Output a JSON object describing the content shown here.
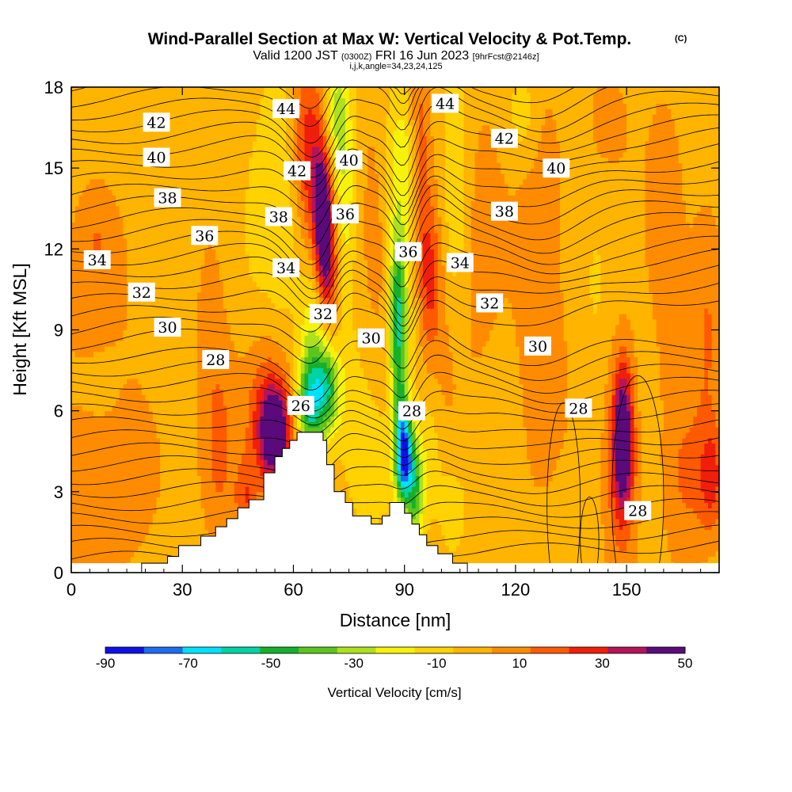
{
  "title": {
    "main": "Wind-Parallel Section at Max W: Vertical Velocity & Pot.Temp.",
    "copyright": "(C)",
    "valid_prefix": "Valid 1200 JST",
    "valid_utc": "(0300Z)",
    "valid_date": "FRI 16 Jun 2023",
    "forecast": "[9hrFcst@2146z]",
    "section_params": "i,j,k,angle=34,23,24,125"
  },
  "chart_data": {
    "type": "heatmap",
    "xlabel": "Distance [nm]",
    "ylabel": "Height [Kft MSL]",
    "xlim": [
      0,
      175
    ],
    "ylim": [
      0,
      18
    ],
    "x_ticks": [
      "0",
      "30",
      "60",
      "90",
      "120",
      "150"
    ],
    "y_ticks": [
      "0",
      "3",
      "6",
      "9",
      "12",
      "15",
      "18"
    ],
    "fill_variable": "Vertical Velocity [cm/s]",
    "colorbar": {
      "title": "Vertical Velocity [cm/s]",
      "tick_labels": [
        "-90",
        "-70",
        "-50",
        "-30",
        "-10",
        "10",
        "30",
        "50"
      ],
      "levels": [
        -90,
        -80,
        -70,
        -60,
        -50,
        -40,
        -30,
        -20,
        -10,
        0,
        10,
        20,
        30,
        40,
        50
      ],
      "colors": [
        "#1010e6",
        "#1e6cf0",
        "#00e0ff",
        "#00d3a6",
        "#16b02c",
        "#5cc41c",
        "#aee01e",
        "#f6f20a",
        "#ffd200",
        "#ffb400",
        "#ff8c00",
        "#ff5a00",
        "#f01e0a",
        "#b4145a",
        "#5a0a7a"
      ]
    },
    "contour_variable": "Potential Temperature",
    "contour_levels": [
      26,
      28,
      30,
      32,
      34,
      36,
      38,
      40,
      42,
      44
    ],
    "contour_labels": [
      {
        "text": "42",
        "x": 23,
        "y": 16.7
      },
      {
        "text": "40",
        "x": 23,
        "y": 15.4
      },
      {
        "text": "38",
        "x": 26,
        "y": 13.9
      },
      {
        "text": "36",
        "x": 36,
        "y": 12.5
      },
      {
        "text": "34",
        "x": 7,
        "y": 11.6
      },
      {
        "text": "32",
        "x": 19,
        "y": 10.4
      },
      {
        "text": "30",
        "x": 26,
        "y": 9.1
      },
      {
        "text": "28",
        "x": 39,
        "y": 7.9
      },
      {
        "text": "44",
        "x": 58,
        "y": 17.2
      },
      {
        "text": "42",
        "x": 61,
        "y": 14.9
      },
      {
        "text": "38",
        "x": 56,
        "y": 13.2
      },
      {
        "text": "34",
        "x": 58,
        "y": 11.3
      },
      {
        "text": "32",
        "x": 68,
        "y": 9.6
      },
      {
        "text": "26",
        "x": 62,
        "y": 6.2
      },
      {
        "text": "40",
        "x": 75,
        "y": 15.3
      },
      {
        "text": "36",
        "x": 74,
        "y": 13.3
      },
      {
        "text": "30",
        "x": 81,
        "y": 8.7
      },
      {
        "text": "36",
        "x": 91,
        "y": 11.9
      },
      {
        "text": "28",
        "x": 92,
        "y": 6.0
      },
      {
        "text": "44",
        "x": 101,
        "y": 17.4
      },
      {
        "text": "42",
        "x": 117,
        "y": 16.1
      },
      {
        "text": "40",
        "x": 131,
        "y": 15.0
      },
      {
        "text": "38",
        "x": 117,
        "y": 13.4
      },
      {
        "text": "34",
        "x": 105,
        "y": 11.5
      },
      {
        "text": "32",
        "x": 113,
        "y": 10.0
      },
      {
        "text": "30",
        "x": 126,
        "y": 8.4
      },
      {
        "text": "28",
        "x": 137,
        "y": 6.1
      },
      {
        "text": "28",
        "x": 153,
        "y": 2.3
      }
    ],
    "terrain_profile": [
      {
        "x": 0,
        "y": 0
      },
      {
        "x": 19,
        "y": 0
      },
      {
        "x": 19,
        "y": 0.35
      },
      {
        "x": 26,
        "y": 0.35
      },
      {
        "x": 26,
        "y": 0.6
      },
      {
        "x": 29,
        "y": 0.6
      },
      {
        "x": 29,
        "y": 1.0
      },
      {
        "x": 35,
        "y": 1.0
      },
      {
        "x": 35,
        "y": 1.35
      },
      {
        "x": 39,
        "y": 1.35
      },
      {
        "x": 39,
        "y": 1.7
      },
      {
        "x": 42,
        "y": 1.7
      },
      {
        "x": 42,
        "y": 2.0
      },
      {
        "x": 45,
        "y": 2.0
      },
      {
        "x": 45,
        "y": 2.4
      },
      {
        "x": 48,
        "y": 2.4
      },
      {
        "x": 48,
        "y": 2.7
      },
      {
        "x": 52,
        "y": 2.7
      },
      {
        "x": 52,
        "y": 3.7
      },
      {
        "x": 55,
        "y": 3.7
      },
      {
        "x": 55,
        "y": 4.3
      },
      {
        "x": 57,
        "y": 4.3
      },
      {
        "x": 57,
        "y": 4.6
      },
      {
        "x": 59,
        "y": 4.6
      },
      {
        "x": 59,
        "y": 4.9
      },
      {
        "x": 61,
        "y": 4.9
      },
      {
        "x": 61,
        "y": 5.2
      },
      {
        "x": 68,
        "y": 5.2
      },
      {
        "x": 68,
        "y": 4.9
      },
      {
        "x": 69,
        "y": 4.9
      },
      {
        "x": 69,
        "y": 4.0
      },
      {
        "x": 71,
        "y": 4.0
      },
      {
        "x": 71,
        "y": 3.0
      },
      {
        "x": 74,
        "y": 3.0
      },
      {
        "x": 74,
        "y": 2.6
      },
      {
        "x": 76,
        "y": 2.6
      },
      {
        "x": 76,
        "y": 2.1
      },
      {
        "x": 81,
        "y": 2.1
      },
      {
        "x": 81,
        "y": 1.8
      },
      {
        "x": 84,
        "y": 1.8
      },
      {
        "x": 84,
        "y": 2.1
      },
      {
        "x": 86,
        "y": 2.1
      },
      {
        "x": 86,
        "y": 2.6
      },
      {
        "x": 90,
        "y": 2.6
      },
      {
        "x": 90,
        "y": 2.2
      },
      {
        "x": 92,
        "y": 2.2
      },
      {
        "x": 92,
        "y": 1.8
      },
      {
        "x": 94,
        "y": 1.8
      },
      {
        "x": 94,
        "y": 1.4
      },
      {
        "x": 96,
        "y": 1.4
      },
      {
        "x": 96,
        "y": 1.0
      },
      {
        "x": 99,
        "y": 1.0
      },
      {
        "x": 99,
        "y": 0.7
      },
      {
        "x": 103,
        "y": 0.7
      },
      {
        "x": 103,
        "y": 0.35
      },
      {
        "x": 107,
        "y": 0.35
      },
      {
        "x": 107,
        "y": 0
      },
      {
        "x": 175,
        "y": 0
      }
    ],
    "ground_level_kft": 0.35,
    "velocity_field": {
      "background_cm_s": 5,
      "features": [
        {
          "x": 4,
          "y": 2.5,
          "sx": 10,
          "sy": 3,
          "value": 9
        },
        {
          "x": 8,
          "y": 9.5,
          "sx": 8,
          "sy": 2.5,
          "value": 9
        },
        {
          "x": 7,
          "y": 12.5,
          "sx": 4,
          "sy": 1.5,
          "value": 11
        },
        {
          "x": 10,
          "y": 7,
          "sx": 6,
          "sy": 2,
          "value": -8
        },
        {
          "x": 18,
          "y": 5,
          "sx": 8,
          "sy": 2.5,
          "value": 9
        },
        {
          "x": 25,
          "y": 8,
          "sx": 5,
          "sy": 3,
          "value": -5
        },
        {
          "x": 35,
          "y": 14,
          "sx": 6,
          "sy": 3,
          "value": -6
        },
        {
          "x": 37,
          "y": 11,
          "sx": 4,
          "sy": 4,
          "value": 10
        },
        {
          "x": 40,
          "y": 4.5,
          "sx": 3,
          "sy": 2.5,
          "value": 16
        },
        {
          "x": 47,
          "y": 2.7,
          "sx": 2,
          "sy": 1,
          "value": 21
        },
        {
          "x": 50,
          "y": 12,
          "sx": 4,
          "sy": 4,
          "value": -6
        },
        {
          "x": 55,
          "y": 5.2,
          "sx": 3,
          "sy": 1.2,
          "value": 53
        },
        {
          "x": 53,
          "y": 6,
          "sx": 5,
          "sy": 2.2,
          "value": 24
        },
        {
          "x": 57,
          "y": 14,
          "sx": 3.5,
          "sy": 4,
          "value": -14
        },
        {
          "x": 63,
          "y": 16,
          "sx": 3,
          "sy": 2,
          "value": 20
        },
        {
          "x": 66,
          "y": 14,
          "sx": 3,
          "sy": 3.5,
          "value": 20
        },
        {
          "x": 68,
          "y": 13.2,
          "sx": 1.6,
          "sy": 1.7,
          "value": 56
        },
        {
          "x": 70,
          "y": 11.2,
          "sx": 1.8,
          "sy": 1.5,
          "value": 24
        },
        {
          "x": 64,
          "y": 6.2,
          "sx": 2.5,
          "sy": 1.2,
          "value": -45
        },
        {
          "x": 65,
          "y": 8.8,
          "sx": 2.5,
          "sy": 2.2,
          "value": -28
        },
        {
          "x": 69,
          "y": 6.8,
          "sx": 2.6,
          "sy": 1.2,
          "value": -50
        },
        {
          "x": 74,
          "y": 14.5,
          "sx": 2,
          "sy": 3.2,
          "value": -22
        },
        {
          "x": 78,
          "y": 6,
          "sx": 4,
          "sy": 2.5,
          "value": -10
        },
        {
          "x": 71,
          "y": 17,
          "sx": 2.2,
          "sy": 1.6,
          "value": -25
        },
        {
          "x": 82,
          "y": 12,
          "sx": 3.5,
          "sy": 5,
          "value": 8
        },
        {
          "x": 82,
          "y": 3.8,
          "sx": 3.5,
          "sy": 1.5,
          "value": -12
        },
        {
          "x": 88,
          "y": 10.5,
          "sx": 1.6,
          "sy": 2,
          "value": -42
        },
        {
          "x": 88.5,
          "y": 7,
          "sx": 1.6,
          "sy": 2.2,
          "value": -38
        },
        {
          "x": 90,
          "y": 4.3,
          "sx": 1.6,
          "sy": 1.2,
          "value": -82
        },
        {
          "x": 93,
          "y": 3,
          "sx": 1.6,
          "sy": 1.5,
          "value": -40
        },
        {
          "x": 89,
          "y": 15.5,
          "sx": 3,
          "sy": 2,
          "value": -20
        },
        {
          "x": 92,
          "y": 11.5,
          "sx": 2,
          "sy": 3,
          "value": -14
        },
        {
          "x": 94,
          "y": 15,
          "sx": 2,
          "sy": 3.5,
          "value": 24
        },
        {
          "x": 97,
          "y": 11,
          "sx": 2,
          "sy": 2,
          "value": 24
        },
        {
          "x": 97,
          "y": 5,
          "sx": 2.5,
          "sy": 2,
          "value": -12
        },
        {
          "x": 101,
          "y": 7.5,
          "sx": 4,
          "sy": 3,
          "value": 9
        },
        {
          "x": 104,
          "y": 14,
          "sx": 2.5,
          "sy": 4,
          "value": -16
        },
        {
          "x": 103,
          "y": 2.5,
          "sx": 3,
          "sy": 1.5,
          "value": -10
        },
        {
          "x": 111,
          "y": 12,
          "sx": 5,
          "sy": 4,
          "value": 10
        },
        {
          "x": 115,
          "y": 4,
          "sx": 4,
          "sy": 4,
          "value": -5
        },
        {
          "x": 122,
          "y": 17,
          "sx": 3,
          "sy": 1.5,
          "value": -14
        },
        {
          "x": 126,
          "y": 12.5,
          "sx": 5,
          "sy": 5,
          "value": 11
        },
        {
          "x": 130,
          "y": 5.5,
          "sx": 5,
          "sy": 2.5,
          "value": 8
        },
        {
          "x": 134,
          "y": 2.5,
          "sx": 4,
          "sy": 2,
          "value": -5
        },
        {
          "x": 142,
          "y": 11,
          "sx": 4,
          "sy": 5,
          "value": -6
        },
        {
          "x": 144,
          "y": 16.5,
          "sx": 5,
          "sy": 2,
          "value": 10
        },
        {
          "x": 149,
          "y": 5,
          "sx": 1.8,
          "sy": 1.8,
          "value": 52
        },
        {
          "x": 148.5,
          "y": 4,
          "sx": 3.5,
          "sy": 3,
          "value": 22
        },
        {
          "x": 155,
          "y": 6,
          "sx": 3,
          "sy": 3,
          "value": -6
        },
        {
          "x": 160,
          "y": 12,
          "sx": 5,
          "sy": 5,
          "value": 9
        },
        {
          "x": 166,
          "y": 3.5,
          "sx": 4,
          "sy": 2.5,
          "value": 15
        },
        {
          "x": 173,
          "y": 3.5,
          "sx": 2.5,
          "sy": 1.4,
          "value": 27
        },
        {
          "x": 172,
          "y": 9,
          "sx": 3,
          "sy": 3,
          "value": 15
        }
      ]
    }
  }
}
